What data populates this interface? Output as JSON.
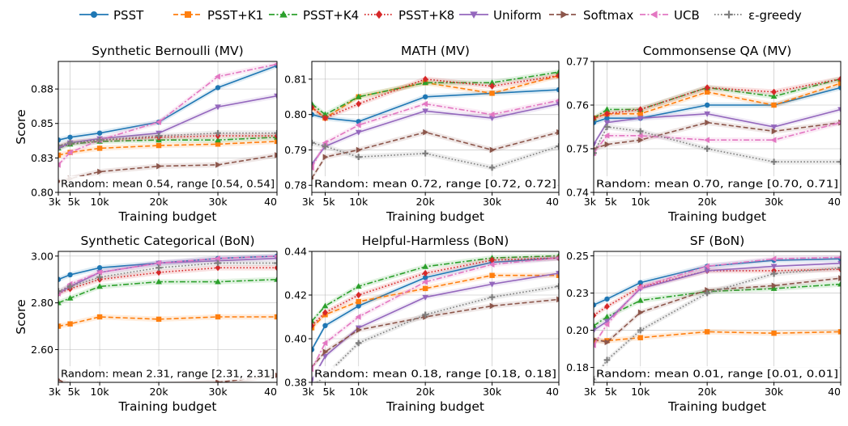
{
  "figure": {
    "legend": [
      {
        "name": "PSST",
        "color": "#1f77b4",
        "dash": "solid",
        "marker": "circle"
      },
      {
        "name": "PSST+K1",
        "color": "#ff7f0e",
        "dash": "dashed",
        "marker": "square"
      },
      {
        "name": "PSST+K4",
        "color": "#2ca02c",
        "dash": "dashdot",
        "marker": "triangle-up"
      },
      {
        "name": "PSST+K8",
        "color": "#d62728",
        "dash": "dotted",
        "marker": "diamond"
      },
      {
        "name": "Uniform",
        "color": "#9467bd",
        "dash": "solid",
        "marker": "triangle-down"
      },
      {
        "name": "Softmax",
        "color": "#8c564b",
        "dash": "dashed",
        "marker": "triangle-right"
      },
      {
        "name": "UCB",
        "color": "#e377c2",
        "dash": "dashdot",
        "marker": "triangle-left"
      },
      {
        "name": "ε-greedy",
        "color": "#7f7f7f",
        "dash": "dotted",
        "marker": "plus"
      }
    ],
    "y_label": "Score"
  },
  "chart_data": [
    {
      "type": "line",
      "title": "Synthetic Bernoulli (MV)",
      "xlabel": "Training budget",
      "ylabel": "Score",
      "x": [
        3,
        5,
        10,
        20,
        30,
        40
      ],
      "xtick_labels": [
        "3k",
        "5k",
        "10k",
        "20k",
        "30k",
        "40"
      ],
      "ylim": [
        0.8,
        0.895
      ],
      "yticks": [
        0.8,
        0.825,
        0.85,
        0.875
      ],
      "ytick_labels": [
        "0.80",
        "0.83",
        "0.85",
        "0.88"
      ],
      "annotation": "Random: mean 0.54, range [0.54, 0.54]",
      "series": [
        {
          "name": "PSST",
          "values": [
            0.838,
            0.84,
            0.843,
            0.851,
            0.876,
            0.892
          ]
        },
        {
          "name": "PSST+K1",
          "values": [
            0.827,
            0.829,
            0.832,
            0.834,
            0.835,
            0.837
          ]
        },
        {
          "name": "PSST+K4",
          "values": [
            0.832,
            0.835,
            0.837,
            0.838,
            0.838,
            0.84
          ]
        },
        {
          "name": "PSST+K8",
          "values": [
            0.833,
            0.836,
            0.838,
            0.84,
            0.841,
            0.841
          ]
        },
        {
          "name": "Uniform",
          "values": [
            0.832,
            0.836,
            0.839,
            0.843,
            0.862,
            0.87
          ]
        },
        {
          "name": "Softmax",
          "values": [
            0.808,
            0.81,
            0.815,
            0.819,
            0.82,
            0.827
          ]
        },
        {
          "name": "UCB",
          "values": [
            0.82,
            0.829,
            0.838,
            0.851,
            0.884,
            0.893
          ]
        },
        {
          "name": "ε-greedy",
          "values": [
            0.834,
            0.836,
            0.838,
            0.841,
            0.843,
            0.843
          ]
        }
      ]
    },
    {
      "type": "line",
      "title": "MATH (MV)",
      "xlabel": "Training budget",
      "ylabel": "",
      "x": [
        3,
        5,
        10,
        20,
        30,
        40
      ],
      "xtick_labels": [
        "3k",
        "5k",
        "10k",
        "20k",
        "30k",
        "40"
      ],
      "ylim": [
        0.778,
        0.815
      ],
      "yticks": [
        0.78,
        0.79,
        0.8,
        0.81
      ],
      "ytick_labels": [
        "0.78",
        "0.79",
        "0.80",
        "0.81"
      ],
      "annotation": "Random: mean 0.72, range [0.72, 0.72]",
      "series": [
        {
          "name": "PSST",
          "values": [
            0.8,
            0.799,
            0.798,
            0.805,
            0.806,
            0.807
          ]
        },
        {
          "name": "PSST+K1",
          "values": [
            0.802,
            0.799,
            0.805,
            0.809,
            0.806,
            0.811
          ]
        },
        {
          "name": "PSST+K4",
          "values": [
            0.803,
            0.8,
            0.805,
            0.809,
            0.809,
            0.812
          ]
        },
        {
          "name": "PSST+K8",
          "values": [
            0.802,
            0.799,
            0.803,
            0.81,
            0.808,
            0.811
          ]
        },
        {
          "name": "Uniform",
          "values": [
            0.786,
            0.791,
            0.795,
            0.801,
            0.799,
            0.803
          ]
        },
        {
          "name": "Softmax",
          "values": [
            0.782,
            0.788,
            0.79,
            0.795,
            0.79,
            0.795
          ]
        },
        {
          "name": "UCB",
          "values": [
            0.785,
            0.792,
            0.797,
            0.803,
            0.8,
            0.804
          ]
        },
        {
          "name": "ε-greedy",
          "values": [
            0.792,
            0.791,
            0.788,
            0.789,
            0.785,
            0.791
          ]
        }
      ]
    },
    {
      "type": "line",
      "title": "Commonsense QA (MV)",
      "xlabel": "Training budget",
      "ylabel": "",
      "x": [
        3,
        5,
        10,
        20,
        30,
        40
      ],
      "xtick_labels": [
        "3k",
        "5k",
        "10k",
        "20k",
        "30k",
        "40"
      ],
      "ylim": [
        0.74,
        0.77
      ],
      "yticks": [
        0.74,
        0.75,
        0.76,
        0.77
      ],
      "ytick_labels": [
        "0.74",
        "0.75",
        "0.76",
        "0.77"
      ],
      "annotation": "Random: mean 0.70, range [0.70, 0.71]",
      "series": [
        {
          "name": "PSST",
          "values": [
            0.756,
            0.757,
            0.757,
            0.76,
            0.76,
            0.764
          ]
        },
        {
          "name": "PSST+K1",
          "values": [
            0.757,
            0.758,
            0.758,
            0.763,
            0.76,
            0.765
          ]
        },
        {
          "name": "PSST+K4",
          "values": [
            0.757,
            0.759,
            0.759,
            0.764,
            0.762,
            0.766
          ]
        },
        {
          "name": "PSST+K8",
          "values": [
            0.757,
            0.758,
            0.759,
            0.764,
            0.763,
            0.766
          ]
        },
        {
          "name": "Uniform",
          "values": [
            0.751,
            0.756,
            0.757,
            0.758,
            0.755,
            0.759
          ]
        },
        {
          "name": "Softmax",
          "values": [
            0.75,
            0.751,
            0.752,
            0.756,
            0.754,
            0.756
          ]
        },
        {
          "name": "UCB",
          "values": [
            0.749,
            0.753,
            0.753,
            0.752,
            0.752,
            0.756
          ]
        },
        {
          "name": "ε-greedy",
          "values": [
            0.749,
            0.755,
            0.754,
            0.75,
            0.747,
            0.747
          ]
        }
      ]
    },
    {
      "type": "line",
      "title": "Synthetic Categorical (BoN)",
      "xlabel": "Training budget",
      "ylabel": "Score",
      "x": [
        3,
        5,
        10,
        20,
        30,
        40
      ],
      "xtick_labels": [
        "3k",
        "5k",
        "10k",
        "20k",
        "30k",
        "40"
      ],
      "ylim": [
        2.46,
        3.02
      ],
      "yticks": [
        2.6,
        2.8,
        3.0
      ],
      "ytick_labels": [
        "2.60",
        "2.80",
        "3.00"
      ],
      "annotation": "Random: mean 2.31, range [2.31, 2.31]",
      "series": [
        {
          "name": "PSST",
          "values": [
            2.9,
            2.92,
            2.95,
            2.97,
            2.99,
            3.0
          ]
        },
        {
          "name": "PSST+K1",
          "values": [
            2.7,
            2.71,
            2.74,
            2.73,
            2.74,
            2.74
          ]
        },
        {
          "name": "PSST+K4",
          "values": [
            2.8,
            2.82,
            2.87,
            2.89,
            2.89,
            2.9
          ]
        },
        {
          "name": "PSST+K8",
          "values": [
            2.84,
            2.86,
            2.9,
            2.93,
            2.95,
            2.95
          ]
        },
        {
          "name": "Uniform",
          "values": [
            2.84,
            2.87,
            2.93,
            2.97,
            2.98,
            2.99
          ]
        },
        {
          "name": "Softmax",
          "values": [
            2.47,
            2.45,
            2.45,
            2.45,
            2.46,
            2.49
          ]
        },
        {
          "name": "UCB",
          "values": [
            2.84,
            2.88,
            2.93,
            2.97,
            2.99,
            3.0
          ]
        },
        {
          "name": "ε-greedy",
          "values": [
            2.85,
            2.87,
            2.91,
            2.95,
            2.97,
            2.97
          ]
        }
      ]
    },
    {
      "type": "line",
      "title": "Helpful-Harmless (BoN)",
      "xlabel": "Training budget",
      "ylabel": "",
      "x": [
        3,
        5,
        10,
        20,
        30,
        40
      ],
      "xtick_labels": [
        "3k",
        "5k",
        "10k",
        "20k",
        "30k",
        "40"
      ],
      "ylim": [
        0.38,
        0.44
      ],
      "yticks": [
        0.38,
        0.4,
        0.42,
        0.44
      ],
      "ytick_labels": [
        "0.38",
        "0.40",
        "0.42",
        "0.44"
      ],
      "annotation": "Random: mean 0.18, range [0.18, 0.18]",
      "series": [
        {
          "name": "PSST",
          "values": [
            0.395,
            0.406,
            0.415,
            0.428,
            0.435,
            0.437
          ]
        },
        {
          "name": "PSST+K1",
          "values": [
            0.405,
            0.411,
            0.417,
            0.423,
            0.429,
            0.429
          ]
        },
        {
          "name": "PSST+K4",
          "values": [
            0.408,
            0.415,
            0.424,
            0.433,
            0.437,
            0.438
          ]
        },
        {
          "name": "PSST+K8",
          "values": [
            0.406,
            0.412,
            0.42,
            0.43,
            0.436,
            0.437
          ]
        },
        {
          "name": "Uniform",
          "values": [
            0.381,
            0.392,
            0.405,
            0.419,
            0.425,
            0.43
          ]
        },
        {
          "name": "Softmax",
          "values": [
            0.387,
            0.394,
            0.404,
            0.41,
            0.415,
            0.418
          ]
        },
        {
          "name": "UCB",
          "values": [
            0.386,
            0.398,
            0.41,
            0.426,
            0.434,
            0.437
          ]
        },
        {
          "name": "ε-greedy",
          "values": [
            0.378,
            0.383,
            0.398,
            0.411,
            0.419,
            0.424
          ]
        }
      ]
    },
    {
      "type": "line",
      "title": "SF (BoN)",
      "xlabel": "Training budget",
      "ylabel": "",
      "x": [
        3,
        5,
        10,
        20,
        30,
        40
      ],
      "xtick_labels": [
        "3k",
        "5k",
        "10k",
        "20k",
        "30k",
        "40"
      ],
      "ylim": [
        0.165,
        0.253
      ],
      "yticks": [
        0.175,
        0.2,
        0.225,
        0.25
      ],
      "ytick_labels": [
        "0.18",
        "0.20",
        "0.23",
        "0.25"
      ],
      "annotation": "Random: mean 0.01, range [0.01, 0.01]",
      "series": [
        {
          "name": "PSST",
          "values": [
            0.217,
            0.221,
            0.232,
            0.243,
            0.247,
            0.248
          ]
        },
        {
          "name": "PSST+K1",
          "values": [
            0.193,
            0.193,
            0.195,
            0.199,
            0.198,
            0.199
          ]
        },
        {
          "name": "PSST+K4",
          "values": [
            0.203,
            0.209,
            0.22,
            0.226,
            0.228,
            0.231
          ]
        },
        {
          "name": "PSST+K8",
          "values": [
            0.21,
            0.216,
            0.229,
            0.24,
            0.24,
            0.241
          ]
        },
        {
          "name": "Uniform",
          "values": [
            0.2,
            0.206,
            0.228,
            0.24,
            0.243,
            0.245
          ]
        },
        {
          "name": "Softmax",
          "values": [
            0.194,
            0.192,
            0.212,
            0.227,
            0.23,
            0.235
          ]
        },
        {
          "name": "UCB",
          "values": [
            0.19,
            0.204,
            0.229,
            0.243,
            0.248,
            0.249
          ]
        },
        {
          "name": "ε-greedy",
          "values": [
            0.167,
            0.18,
            0.2,
            0.225,
            0.238,
            0.242
          ]
        }
      ]
    }
  ]
}
